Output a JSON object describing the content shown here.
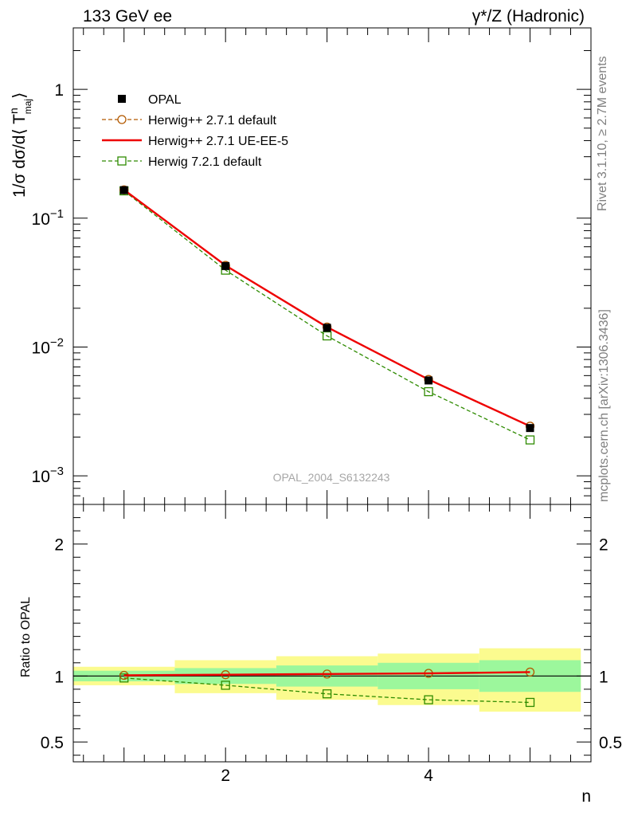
{
  "header": {
    "left": "133 GeV ee",
    "right": "γ*/Z (Hadronic)"
  },
  "side_labels": {
    "rivet": "Rivet 3.1.10, ≥ 2.7M events",
    "mcplots": "mcplots.cern.ch [arXiv:1306.3436]"
  },
  "watermark": "OPAL_2004_S6132243",
  "colors": {
    "opal": "#000000",
    "herwigpp_default": "#b35900",
    "herwigpp_ueee5": "#ee0000",
    "herwig7": "#2e8b00",
    "band_inner": "#9cf79c",
    "band_outer": "#fbfb8f"
  },
  "chart_data": [
    {
      "type": "scatter",
      "panel": "main",
      "ylabel": "1/σ dσ/d⟨ T",
      "ylabel_sup": "n",
      "ylabel_sub": "maj",
      "ylabel_tail": "⟩",
      "yscale": "log",
      "ylim": [
        0.0006,
        3.0
      ],
      "xlim": [
        0.5,
        5.6
      ],
      "y_ticks": [
        {
          "value": 1,
          "base": "1",
          "exp": ""
        },
        {
          "value": 0.1,
          "base": "10",
          "exp": "−1"
        },
        {
          "value": 0.01,
          "base": "10",
          "exp": "−2"
        },
        {
          "value": 0.001,
          "base": "10",
          "exp": "−3"
        }
      ],
      "x": [
        1,
        2,
        3,
        4,
        5
      ],
      "series": [
        {
          "name": "OPAL",
          "style": "data",
          "values": [
            0.165,
            0.0425,
            0.0141,
            0.0055,
            0.00235
          ]
        },
        {
          "name": "Herwig++ 2.7.1 default",
          "style": "circle-dashed",
          "values": [
            0.166,
            0.043,
            0.0143,
            0.0056,
            0.00243
          ]
        },
        {
          "name": "Herwig++ 2.7.1 UE-EE-5",
          "style": "solid",
          "values": [
            0.166,
            0.043,
            0.0143,
            0.0056,
            0.00243
          ]
        },
        {
          "name": "Herwig 7.2.1 default",
          "style": "square-dashed",
          "values": [
            0.163,
            0.0395,
            0.0122,
            0.0045,
            0.0019
          ]
        }
      ]
    },
    {
      "type": "line",
      "panel": "ratio",
      "ylabel": "Ratio to OPAL",
      "xlabel": "n",
      "ylim": [
        0.35,
        2.3
      ],
      "xlim": [
        0.5,
        5.6
      ],
      "y_ticks": [
        {
          "value": 0.5,
          "label": "0.5"
        },
        {
          "value": 1,
          "label": "1"
        },
        {
          "value": 2,
          "label": "2"
        }
      ],
      "x_ticks": [
        {
          "value": 2,
          "label": "2"
        },
        {
          "value": 4,
          "label": "4"
        }
      ],
      "bands": [
        {
          "x0": 0.5,
          "x1": 1.5,
          "inner": [
            0.96,
            1.04
          ],
          "outer": [
            0.93,
            1.07
          ]
        },
        {
          "x0": 1.5,
          "x1": 2.5,
          "inner": [
            0.94,
            1.06
          ],
          "outer": [
            0.87,
            1.12
          ]
        },
        {
          "x0": 2.5,
          "x1": 3.5,
          "inner": [
            0.92,
            1.08
          ],
          "outer": [
            0.82,
            1.15
          ]
        },
        {
          "x0": 3.5,
          "x1": 4.5,
          "inner": [
            0.9,
            1.1
          ],
          "outer": [
            0.78,
            1.17
          ]
        },
        {
          "x0": 4.5,
          "x1": 5.5,
          "inner": [
            0.88,
            1.12
          ],
          "outer": [
            0.73,
            1.21
          ]
        }
      ],
      "x": [
        1,
        2,
        3,
        4,
        5
      ],
      "series": [
        {
          "name": "Herwig++ 2.7.1 default",
          "style": "circle-dashed",
          "values": [
            1.005,
            1.01,
            1.015,
            1.02,
            1.03
          ]
        },
        {
          "name": "Herwig++ 2.7.1 UE-EE-5",
          "style": "solid",
          "values": [
            1.005,
            1.01,
            1.015,
            1.02,
            1.03
          ]
        },
        {
          "name": "Herwig 7.2.1 default",
          "style": "square-dashed",
          "values": [
            0.985,
            0.93,
            0.865,
            0.82,
            0.8
          ]
        }
      ]
    }
  ]
}
